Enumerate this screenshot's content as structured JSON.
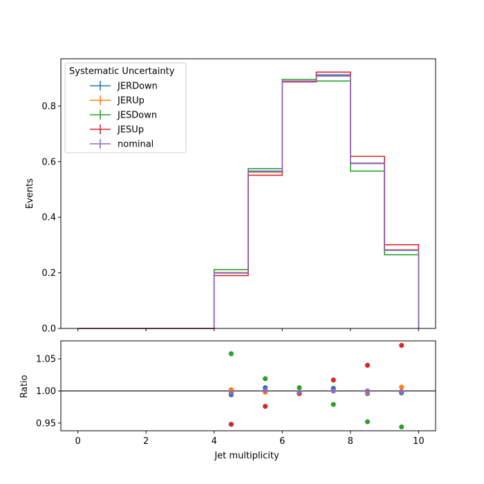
{
  "chart_data": [
    {
      "type": "line",
      "step": true,
      "xlabel": "",
      "ylabel": "Events",
      "xlim": [
        -0.5,
        10.5
      ],
      "ylim": [
        0.0,
        0.97
      ],
      "xticks": [
        "0",
        "2",
        "4",
        "6",
        "8",
        "10"
      ],
      "yticks": [
        "0.0",
        "0.2",
        "0.4",
        "0.6",
        "0.8"
      ],
      "bin_edges": [
        0,
        1,
        2,
        3,
        4,
        5,
        6,
        7,
        8,
        9,
        10
      ],
      "legend": {
        "title": "Systematic Uncertainty",
        "position": "upper-left"
      },
      "series": [
        {
          "name": "JERDown",
          "color": "#1f77b4",
          "values": [
            0,
            0,
            0,
            0,
            0.199,
            0.566,
            0.887,
            0.912,
            0.593,
            0.281
          ]
        },
        {
          "name": "JERUp",
          "color": "#ff7f0e",
          "values": [
            0,
            0,
            0,
            0,
            0.201,
            0.562,
            0.888,
            0.908,
            0.594,
            0.283
          ]
        },
        {
          "name": "JESDown",
          "color": "#2ca02c",
          "values": [
            0,
            0,
            0,
            0,
            0.212,
            0.575,
            0.896,
            0.89,
            0.566,
            0.265
          ]
        },
        {
          "name": "JESUp",
          "color": "#d62728",
          "values": [
            0,
            0,
            0,
            0,
            0.19,
            0.551,
            0.887,
            0.922,
            0.619,
            0.301
          ]
        },
        {
          "name": "nominal",
          "color": "#9467bd",
          "values": [
            0,
            0,
            0,
            0,
            0.2,
            0.564,
            0.89,
            0.908,
            0.595,
            0.282
          ]
        }
      ]
    },
    {
      "type": "scatter",
      "xlabel": "Jet multiplicity",
      "ylabel": "Ratio",
      "xlim": [
        -0.5,
        10.5
      ],
      "ylim": [
        0.938,
        1.078
      ],
      "xticks": [
        "0",
        "2",
        "4",
        "6",
        "8",
        "10"
      ],
      "yticks": [
        "0.95",
        "1.00",
        "1.05"
      ],
      "reference_line": 1.0,
      "x": [
        4.5,
        5.5,
        6.5,
        7.5,
        8.5,
        9.5
      ],
      "series": [
        {
          "name": "JERDown",
          "color": "#1f77b4",
          "values": [
            0.994,
            1.005,
            0.996,
            1.004,
            0.996,
            0.997
          ]
        },
        {
          "name": "JERUp",
          "color": "#ff7f0e",
          "values": [
            1.002,
            0.998,
            0.998,
            1.0,
            0.998,
            1.006
          ]
        },
        {
          "name": "JESDown",
          "color": "#2ca02c",
          "values": [
            1.058,
            1.019,
            1.005,
            0.979,
            0.952,
            0.944
          ]
        },
        {
          "name": "JESUp",
          "color": "#d62728",
          "values": [
            0.948,
            0.976,
            0.996,
            1.017,
            1.04,
            1.071
          ]
        },
        {
          "name": "nominal",
          "color": "#9467bd",
          "values": [
            0.997,
            1.001,
            0.998,
            1.0,
            1.0,
            0.999
          ]
        }
      ]
    }
  ]
}
